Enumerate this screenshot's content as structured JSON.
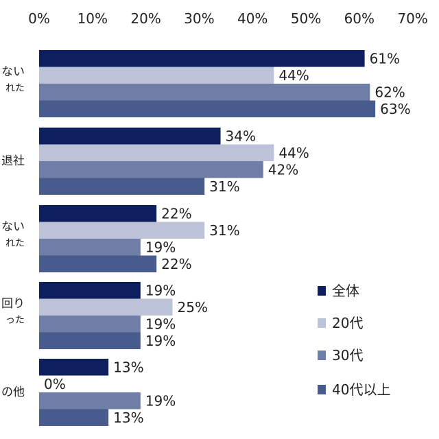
{
  "chart_data": {
    "type": "bar",
    "orientation": "horizontal",
    "title": "",
    "xlabel": "",
    "ylabel": "",
    "xlim": [
      0,
      70
    ],
    "x_ticks": [
      "0%",
      "10%",
      "20%",
      "30%",
      "40%",
      "50%",
      "60%",
      "70%"
    ],
    "x_tick_values": [
      0,
      10,
      20,
      30,
      40,
      50,
      60,
      70
    ],
    "grid": false,
    "legend_position": "bottom-right",
    "categories": [
      {
        "main": "ない",
        "sub": "れた"
      },
      {
        "main": "退社",
        "sub": ""
      },
      {
        "main": "ない",
        "sub": "れた"
      },
      {
        "main": "回り",
        "sub": "った"
      },
      {
        "main": "の他",
        "sub": ""
      }
    ],
    "series": [
      {
        "name": "全体",
        "color": "#0d1f5e",
        "values": [
          61,
          34,
          22,
          19,
          13
        ],
        "labels": [
          "61%",
          "34%",
          "22%",
          "19%",
          "13%"
        ]
      },
      {
        "name": "20代",
        "color": "#bcc3d9",
        "values": [
          44,
          44,
          31,
          25,
          0
        ],
        "labels": [
          "44%",
          "44%",
          "31%",
          "25%",
          "0%"
        ]
      },
      {
        "name": "30代",
        "color": "#6f7ea6",
        "values": [
          62,
          42,
          19,
          19,
          19
        ],
        "labels": [
          "62%",
          "42%",
          "19%",
          "19%",
          "19%"
        ]
      },
      {
        "name": "40代以上",
        "color": "#475b8c",
        "values": [
          63,
          31,
          22,
          19,
          13
        ],
        "labels": [
          "63%",
          "31%",
          "22%",
          "19%",
          "13%"
        ]
      }
    ]
  }
}
